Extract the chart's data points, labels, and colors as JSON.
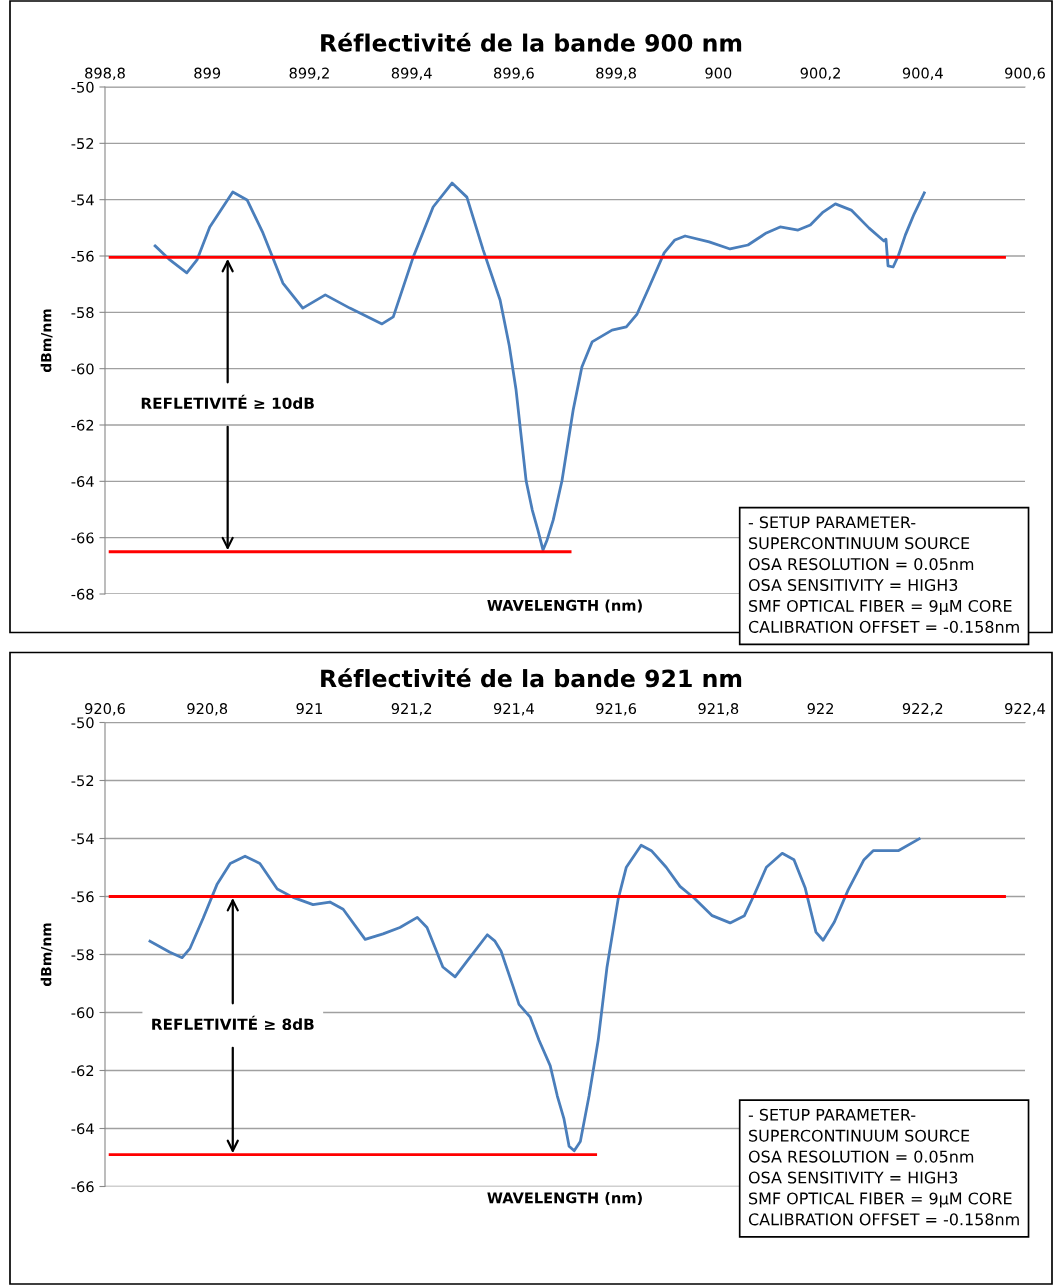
{
  "chart_data": [
    {
      "type": "line",
      "title": "Réflectivité de la bande 900 nm",
      "xlabel": "WAVELENGTH (nm)",
      "ylabel": "dBm/nm",
      "xlim": [
        898.8,
        900.6
      ],
      "xticks": [
        {
          "value": 898.8,
          "label": "898,8"
        },
        899,
        {
          "value": 899.2,
          "label": "899,2"
        },
        {
          "value": 899.4,
          "label": "899,4"
        },
        {
          "value": 899.6,
          "label": "899,6"
        },
        {
          "value": 899.8,
          "label": "899,8"
        },
        900,
        {
          "value": 900.2,
          "label": "900,2"
        },
        {
          "value": 900.4,
          "label": "900,4"
        },
        {
          "value": 900.6,
          "label": "900,6"
        }
      ],
      "ylim": [
        -68,
        -50
      ],
      "yticks": [
        -68,
        -66,
        -64,
        -62,
        -60,
        -58,
        -56,
        -54,
        -52,
        -50
      ],
      "grid": "y",
      "series": [
        {
          "color": "#4a7ebb",
          "x": [
            898.898,
            898.927,
            898.96,
            898.98,
            899.005,
            899.05,
            899.078,
            899.109,
            899.148,
            899.187,
            899.231,
            899.279,
            899.342,
            899.364,
            899.403,
            899.442,
            899.479,
            899.508,
            899.54,
            899.573,
            899.591,
            899.604,
            899.624,
            899.636,
            899.647,
            899.657,
            899.665,
            899.677,
            899.69,
            899.694,
            899.716,
            899.733,
            899.753,
            899.792,
            899.82,
            899.841,
            899.863,
            899.894,
            899.915,
            899.935,
            899.982,
            900.023,
            900.058,
            900.094,
            900.121,
            900.156,
            900.18,
            900.205,
            900.229,
            900.26,
            900.295,
            900.324,
            900.328,
            900.332,
            900.342,
            900.352,
            900.366,
            900.383,
            900.403
          ],
          "values": [
            -55.64,
            -56.14,
            -56.6,
            -56.14,
            -54.97,
            -53.73,
            -54.01,
            -55.18,
            -56.96,
            -57.85,
            -57.38,
            -57.85,
            -58.41,
            -58.16,
            -56.04,
            -54.26,
            -53.41,
            -53.91,
            -55.79,
            -57.56,
            -59.19,
            -60.72,
            -63.99,
            -65.02,
            -65.73,
            -66.44,
            -66.08,
            -65.37,
            -64.31,
            -63.99,
            -61.47,
            -59.94,
            -59.05,
            -58.63,
            -58.52,
            -58.06,
            -57.17,
            -55.89,
            -55.43,
            -55.29,
            -55.5,
            -55.75,
            -55.61,
            -55.18,
            -54.97,
            -55.08,
            -54.9,
            -54.44,
            -54.15,
            -54.37,
            -55.01,
            -55.47,
            -55.4,
            -56.35,
            -56.39,
            -56.0,
            -55.25,
            -54.51,
            -53.76
          ]
        },
        {
          "color": "#ff0000",
          "x": [
            898.81,
            900.56
          ],
          "values": [
            -56.05,
            -56.05
          ]
        },
        {
          "color": "#ff0000",
          "x": [
            898.81,
            899.71
          ],
          "values": [
            -66.5,
            -66.5
          ]
        }
      ],
      "annotations": [
        {
          "text": "REFLETIVITÉ ≥ 10dB",
          "x": 899.04,
          "y": -66.5
        },
        "- SETUP PARAMETER-\nSUPERCONTINUUM SOURCE\nOSA RESOLUTION = 0.05nm\nOSA SENSITIVITY = HIGH3\nSMF OPTICAL FIBER = 9µM CORE\nCALIBRATION OFFSET = -0.158nm"
      ]
    },
    {
      "type": "line",
      "title": "Réflectivité de la bande 921 nm",
      "xlabel": "WAVELENGTH (nm)",
      "ylabel": "dBm/nm",
      "xlim": [
        920.6,
        922.4
      ],
      "xticks": [
        {
          "value": 920.6,
          "label": "920,6"
        },
        {
          "value": 920.8,
          "label": "920,8"
        },
        921,
        {
          "value": 921.2,
          "label": "921,2"
        },
        {
          "value": 921.4,
          "label": "921,4"
        },
        {
          "value": 921.6,
          "label": "921,6"
        },
        {
          "value": 921.8,
          "label": "921,8"
        },
        922,
        {
          "value": 922.2,
          "label": "922,2"
        },
        {
          "value": 922.4,
          "label": "922,4"
        }
      ],
      "ylim": [
        -66,
        -50
      ],
      "yticks": [
        -66,
        -64,
        -62,
        -60,
        -58,
        -56,
        -54,
        -52,
        -50
      ],
      "grid": "y",
      "series": [
        {
          "color": "#4a7ebb",
          "x": [
            920.688,
            920.727,
            920.751,
            920.766,
            920.792,
            920.819,
            920.845,
            920.874,
            920.903,
            920.937,
            920.968,
            921.007,
            921.04,
            921.066,
            921.109,
            921.144,
            921.177,
            921.211,
            921.23,
            921.261,
            921.285,
            921.308,
            921.348,
            921.363,
            921.375,
            921.397,
            921.41,
            921.432,
            921.449,
            921.471,
            921.485,
            921.498,
            921.508,
            921.518,
            921.53,
            921.547,
            921.565,
            921.582,
            921.604,
            921.62,
            921.649,
            921.669,
            921.698,
            921.725,
            921.753,
            921.788,
            921.823,
            921.851,
            921.872,
            921.894,
            921.925,
            921.948,
            921.97,
            921.991,
            922.005,
            922.027,
            922.054,
            922.085,
            922.103,
            922.152,
            922.193
          ],
          "values": [
            -57.54,
            -57.92,
            -58.11,
            -57.8,
            -56.75,
            -55.59,
            -54.86,
            -54.61,
            -54.86,
            -55.74,
            -56.03,
            -56.28,
            -56.19,
            -56.44,
            -57.48,
            -57.29,
            -57.07,
            -56.72,
            -57.07,
            -58.43,
            -58.77,
            -58.24,
            -57.32,
            -57.54,
            -57.89,
            -59.03,
            -59.72,
            -60.16,
            -60.95,
            -61.83,
            -62.88,
            -63.67,
            -64.61,
            -64.77,
            -64.45,
            -62.88,
            -60.95,
            -58.46,
            -56.09,
            -54.99,
            -54.23,
            -54.42,
            -54.99,
            -55.65,
            -56.06,
            -56.66,
            -56.91,
            -56.66,
            -55.87,
            -54.99,
            -54.51,
            -54.73,
            -55.71,
            -57.23,
            -57.51,
            -56.88,
            -55.77,
            -54.73,
            -54.42,
            -54.42,
            -54.01
          ]
        },
        {
          "color": "#ff0000",
          "x": [
            920.61,
            922.36
          ],
          "values": [
            -56.0,
            -56.0
          ]
        },
        {
          "color": "#ff0000",
          "x": [
            920.61,
            921.56
          ],
          "values": [
            -64.9,
            -64.9
          ]
        }
      ],
      "annotations": [
        {
          "text": "REFLETIVITÉ ≥ 8dB",
          "x": 920.85,
          "y": -64.9
        },
        "- SETUP PARAMETER-\nSUPERCONTINUUM SOURCE\nOSA RESOLUTION = 0.05nm\nOSA SENSITIVITY = HIGH3\nSMF OPTICAL FIBER = 9µM CORE\nCALIBRATION OFFSET = -0.158nm"
      ]
    }
  ]
}
